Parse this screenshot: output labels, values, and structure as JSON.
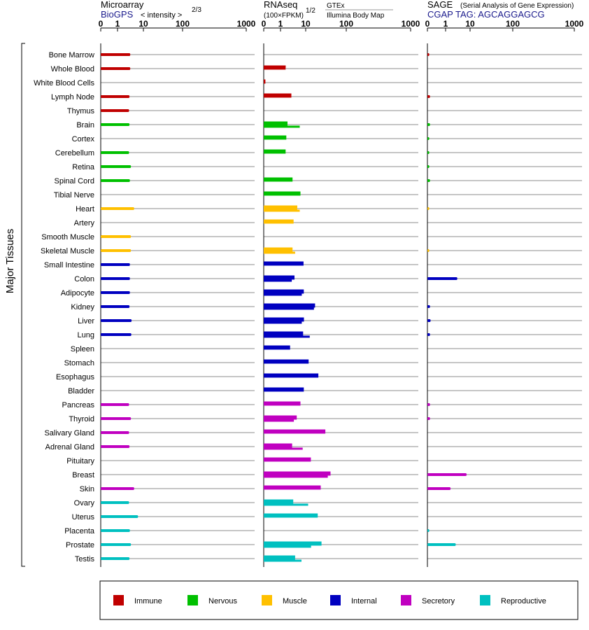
{
  "chart_data": {
    "type": "bar",
    "ylabel": "Major Tissues",
    "scale": "power",
    "categories": [
      "Bone Marrow",
      "Whole Blood",
      "White Blood Cells",
      "Lymph Node",
      "Thymus",
      "Brain",
      "Cortex",
      "Cerebellum",
      "Retina",
      "Spinal Cord",
      "Tibial Nerve",
      "Heart",
      "Artery",
      "Smooth Muscle",
      "Skeletal Muscle",
      "Small Intestine",
      "Colon",
      "Adipocyte",
      "Kidney",
      "Liver",
      "Lung",
      "Spleen",
      "Stomach",
      "Esophagus",
      "Bladder",
      "Pancreas",
      "Thyroid",
      "Salivary Gland",
      "Adrenal Gland",
      "Pituitary",
      "Breast",
      "Skin",
      "Ovary",
      "Uterus",
      "Placenta",
      "Prostate",
      "Testis"
    ],
    "tissue_group": [
      "Immune",
      "Immune",
      "Immune",
      "Immune",
      "Immune",
      "Nervous",
      "Nervous",
      "Nervous",
      "Nervous",
      "Nervous",
      "Nervous",
      "Muscle",
      "Muscle",
      "Muscle",
      "Muscle",
      "Internal",
      "Internal",
      "Internal",
      "Internal",
      "Internal",
      "Internal",
      "Internal",
      "Internal",
      "Internal",
      "Internal",
      "Secretory",
      "Secretory",
      "Secretory",
      "Secretory",
      "Secretory",
      "Secretory",
      "Secretory",
      "Reproductive",
      "Reproductive",
      "Reproductive",
      "Reproductive",
      "Reproductive"
    ],
    "panels": [
      {
        "title": "Microarray",
        "subtitle": "BioGPS",
        "axis_label": "< intensity >",
        "axis_exponent": "2/3",
        "exponent": 0.6667,
        "ticks": [
          "0",
          "1",
          "10",
          "100",
          "1000"
        ],
        "tick_values": [
          0,
          1,
          10,
          100,
          1000
        ],
        "xlim": [
          0,
          1000
        ],
        "series": [
          {
            "name": "BioGPS",
            "values": [
              3.1,
              3.1,
              null,
              2.9,
              2.8,
              2.9,
              null,
              2.8,
              3.3,
              3.0,
              null,
              4.4,
              null,
              3.3,
              3.3,
              3.0,
              3.0,
              3.0,
              2.9,
              3.5,
              3.4,
              null,
              null,
              null,
              null,
              2.8,
              3.3,
              2.8,
              2.9,
              null,
              null,
              4.4,
              2.8,
              6.2,
              3.0,
              3.3,
              2.9
            ]
          }
        ]
      },
      {
        "title": "RNAseq",
        "axis_label": "(100×FPKM)",
        "axis_exponent": "1/2",
        "exponent": 0.5,
        "legend_top": "GTEx",
        "legend_bottom": "Illumina Body Map",
        "ticks": [
          "0",
          "1",
          "10",
          "100",
          "1000"
        ],
        "tick_values": [
          0,
          1,
          10,
          100,
          1000
        ],
        "xlim": [
          0,
          1000
        ],
        "series": [
          {
            "name": "GTEx",
            "values": [
              null,
              1.6,
              null,
              null,
              null,
              null,
              null,
              null,
              null,
              null,
              null,
              4.6,
              null,
              null,
              null,
              null,
              3.6,
              null,
              null,
              null,
              null,
              null,
              null,
              null,
              null,
              null,
              null,
              null,
              null,
              null,
              null,
              null,
              null,
              null,
              null,
              null,
              null
            ]
          },
          {
            "name": "GTEx",
            "values": [
              null,
              1.6,
              0.01,
              2.7,
              null,
              1.9,
              1.7,
              1.6,
              null,
              3.0,
              6.2,
              4.6,
              3.3,
              null,
              3.0,
              8.2,
              3.6,
              8.4,
              17.0,
              8.5,
              7.9,
              2.4,
              11.8,
              20.5,
              8.4,
              6.2,
              4.4,
              30.5,
              2.9,
              13.4,
              41.0,
              23.5,
              3.2,
              19.8,
              null,
              24.5,
              3.8
            ]
          },
          {
            "name": "Illumina Body Map",
            "values": [
              null,
              null,
              null,
              null,
              null,
              5.8,
              null,
              null,
              null,
              null,
              null,
              5.8,
              null,
              null,
              3.8,
              null,
              2.8,
              7.0,
              16.0,
              7.0,
              12.6,
              null,
              null,
              null,
              null,
              null,
              3.4,
              null,
              7.6,
              null,
              35.0,
              null,
              11.5,
              null,
              null,
              13.6,
              6.8
            ]
          }
        ]
      },
      {
        "title": "SAGE",
        "title_note": "(Serial Analysis of Gene Expression)",
        "subtitle": "CGAP TAG: AGCAGGAGCG",
        "ticks": [
          "0",
          "1",
          "10",
          "100",
          "1000"
        ],
        "tick_values": [
          0,
          1,
          10,
          100,
          1000
        ],
        "xlim": [
          0,
          1000
        ],
        "series": [
          {
            "name": "CGAP",
            "values": [
              0.01,
              null,
              null,
              0.02,
              null,
              0.02,
              0.01,
              0.01,
              0.01,
              0.02,
              null,
              0.01,
              null,
              null,
              0.01,
              null,
              3.0,
              null,
              0.02,
              0.03,
              0.02,
              null,
              null,
              null,
              null,
              0.02,
              0.02,
              null,
              null,
              null,
              7.2,
              1.6,
              null,
              null,
              0.01,
              2.6,
              null
            ]
          }
        ]
      }
    ],
    "legend": [
      {
        "label": "Immune",
        "color": "#c00000"
      },
      {
        "label": "Nervous",
        "color": "#00c000"
      },
      {
        "label": "Muscle",
        "color": "#ffc000"
      },
      {
        "label": "Internal",
        "color": "#0000c0"
      },
      {
        "label": "Secretory",
        "color": "#c000c0"
      },
      {
        "label": "Reproductive",
        "color": "#00c0c0"
      }
    ],
    "legend_position": "bottom",
    "grid": true
  }
}
